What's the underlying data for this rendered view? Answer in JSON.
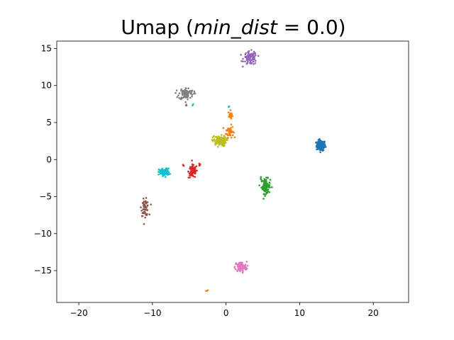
{
  "chart_data": {
    "type": "scatter",
    "title_prefix": "Umap (",
    "title_var": "min_dist",
    "title_suffix": " = 0.0)",
    "xlim": [
      -23,
      24.8
    ],
    "ylim": [
      -19.3,
      16
    ],
    "xticks": [
      -20,
      -10,
      0,
      10,
      20
    ],
    "yticks": [
      -15,
      -10,
      -5,
      0,
      5,
      10,
      15
    ],
    "clusters": [
      {
        "color": "#1f77b4",
        "blobs": [
          {
            "cx": 12.9,
            "cy": 1.9,
            "sx": 0.3,
            "sy": 0.35,
            "n": 150
          }
        ]
      },
      {
        "color": "#ff7f0e",
        "blobs": [
          {
            "cx": 0.5,
            "cy": 3.8,
            "sx": 0.25,
            "sy": 0.4,
            "n": 50
          },
          {
            "cx": 0.6,
            "cy": 6.0,
            "sx": 0.15,
            "sy": 0.3,
            "n": 18
          },
          {
            "cx": -2.6,
            "cy": -17.7,
            "sx": 0.06,
            "sy": 0.06,
            "n": 3
          }
        ]
      },
      {
        "color": "#2ca02c",
        "blobs": [
          {
            "cx": 5.4,
            "cy": -3.6,
            "sx": 0.3,
            "sy": 0.5,
            "n": 90
          },
          {
            "cx": 4.7,
            "cy": -2.6,
            "sx": 0.06,
            "sy": 0.12,
            "n": 4
          }
        ]
      },
      {
        "color": "#d62728",
        "blobs": [
          {
            "cx": -4.5,
            "cy": -1.6,
            "sx": 0.3,
            "sy": 0.45,
            "n": 70
          },
          {
            "cx": -5.8,
            "cy": -0.8,
            "sx": 0.05,
            "sy": 0.06,
            "n": 3
          },
          {
            "cx": -3.6,
            "cy": -0.7,
            "sx": 0.1,
            "sy": 0.15,
            "n": 5
          }
        ]
      },
      {
        "color": "#9467bd",
        "blobs": [
          {
            "cx": 3.3,
            "cy": 13.7,
            "sx": 0.45,
            "sy": 0.45,
            "n": 90
          }
        ]
      },
      {
        "color": "#8c564b",
        "blobs": [
          {
            "cx": -11.0,
            "cy": -6.5,
            "sx": 0.25,
            "sy": 0.55,
            "n": 60
          }
        ]
      },
      {
        "color": "#e377c2",
        "blobs": [
          {
            "cx": 2.0,
            "cy": -14.5,
            "sx": 0.4,
            "sy": 0.35,
            "n": 100
          }
        ]
      },
      {
        "color": "#7f7f7f",
        "blobs": [
          {
            "cx": -5.4,
            "cy": 8.9,
            "sx": 0.5,
            "sy": 0.4,
            "n": 80
          },
          {
            "cx": -5.4,
            "cy": 7.4,
            "sx": 0.05,
            "sy": 0.08,
            "n": 3
          },
          {
            "cx": -4.4,
            "cy": 9.0,
            "sx": 0.05,
            "sy": 0.08,
            "n": 2
          }
        ]
      },
      {
        "color": "#bcbd22",
        "blobs": [
          {
            "cx": -0.9,
            "cy": 2.5,
            "sx": 0.45,
            "sy": 0.35,
            "n": 120
          }
        ]
      },
      {
        "color": "#17becf",
        "blobs": [
          {
            "cx": -8.4,
            "cy": -1.7,
            "sx": 0.35,
            "sy": 0.25,
            "n": 100
          },
          {
            "cx": 0.4,
            "cy": 7.2,
            "sx": 0.04,
            "sy": 0.05,
            "n": 3
          },
          {
            "cx": -4.5,
            "cy": 7.4,
            "sx": 0.04,
            "sy": 0.04,
            "n": 2
          }
        ]
      }
    ]
  }
}
